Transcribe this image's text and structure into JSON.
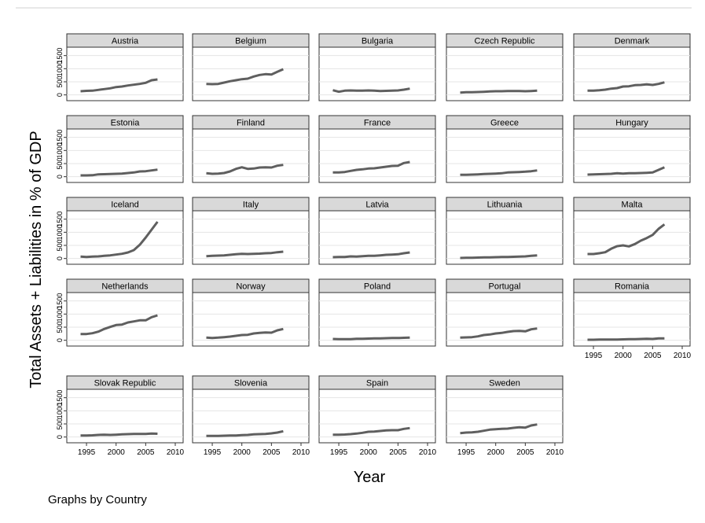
{
  "figure": {
    "ylabel": "Total Assets + Liabilities in % of GDP",
    "xlabel": "Year",
    "note": "Graphs by  Country"
  },
  "chart_data": {
    "type": "line",
    "layout": "small-multiples 5x5",
    "xlim": [
      1993,
      2010
    ],
    "ylim": [
      -100,
      1700
    ],
    "x_ticks": [
      1995,
      2000,
      2005,
      2010
    ],
    "y_ticks": [
      0,
      500,
      1000,
      1500
    ],
    "grid": true,
    "line_color": "#5f5f5f",
    "strip_color": "#d9d9d9",
    "panels": [
      {
        "name": "Austria",
        "x": [
          1994,
          1995,
          1996,
          1997,
          1998,
          1999,
          2000,
          2001,
          2002,
          2003,
          2004,
          2005,
          2006,
          2007
        ],
        "values": [
          140,
          155,
          160,
          190,
          220,
          250,
          300,
          320,
          360,
          390,
          420,
          460,
          560,
          590
        ]
      },
      {
        "name": "Belgium",
        "x": [
          1994,
          1995,
          1996,
          1997,
          1998,
          1999,
          2000,
          2001,
          2002,
          2003,
          2004,
          2005,
          2006,
          2007
        ],
        "values": [
          420,
          410,
          420,
          470,
          520,
          560,
          600,
          620,
          700,
          760,
          790,
          780,
          880,
          980
        ]
      },
      {
        "name": "Bulgaria",
        "x": [
          1994,
          1995,
          1996,
          1997,
          1998,
          1999,
          2000,
          2001,
          2002,
          2003,
          2004,
          2005,
          2006,
          2007
        ],
        "values": [
          180,
          120,
          160,
          170,
          160,
          165,
          170,
          160,
          150,
          155,
          165,
          170,
          200,
          240
        ]
      },
      {
        "name": "Czech Republic",
        "x": [
          1994,
          1995,
          1996,
          1997,
          1998,
          1999,
          2000,
          2001,
          2002,
          2003,
          2004,
          2005,
          2006,
          2007
        ],
        "values": [
          90,
          100,
          100,
          110,
          120,
          130,
          140,
          140,
          150,
          145,
          150,
          140,
          150,
          160
        ]
      },
      {
        "name": "Denmark",
        "x": [
          1994,
          1995,
          1996,
          1997,
          1998,
          1999,
          2000,
          2001,
          2002,
          2003,
          2004,
          2005,
          2006,
          2007
        ],
        "values": [
          160,
          165,
          180,
          200,
          240,
          260,
          320,
          330,
          370,
          380,
          400,
          380,
          420,
          480
        ]
      },
      {
        "name": "Estonia",
        "x": [
          1994,
          1995,
          1996,
          1997,
          1998,
          1999,
          2000,
          2001,
          2002,
          2003,
          2004,
          2005,
          2006,
          2007
        ],
        "values": [
          50,
          50,
          55,
          90,
          95,
          100,
          110,
          120,
          140,
          160,
          200,
          210,
          240,
          270
        ]
      },
      {
        "name": "Finland",
        "x": [
          1994,
          1995,
          1996,
          1997,
          1998,
          1999,
          2000,
          2001,
          2002,
          2003,
          2004,
          2005,
          2006,
          2007
        ],
        "values": [
          130,
          110,
          120,
          140,
          200,
          300,
          360,
          300,
          310,
          350,
          360,
          350,
          420,
          450
        ]
      },
      {
        "name": "France",
        "x": [
          1994,
          1995,
          1996,
          1997,
          1998,
          1999,
          2000,
          2001,
          2002,
          2003,
          2004,
          2005,
          2006,
          2007
        ],
        "values": [
          160,
          165,
          180,
          220,
          260,
          280,
          310,
          320,
          350,
          380,
          410,
          420,
          520,
          560
        ]
      },
      {
        "name": "Greece",
        "x": [
          1994,
          1995,
          1996,
          1997,
          1998,
          1999,
          2000,
          2001,
          2002,
          2003,
          2004,
          2005,
          2006,
          2007
        ],
        "values": [
          70,
          75,
          80,
          90,
          100,
          110,
          120,
          130,
          160,
          170,
          180,
          190,
          210,
          240
        ]
      },
      {
        "name": "Hungary",
        "x": [
          1994,
          1995,
          1996,
          1997,
          1998,
          1999,
          2000,
          2001,
          2002,
          2003,
          2004,
          2005,
          2006,
          2007
        ],
        "values": [
          80,
          90,
          95,
          100,
          110,
          130,
          120,
          130,
          130,
          140,
          150,
          160,
          260,
          360
        ]
      },
      {
        "name": "Iceland",
        "x": [
          1994,
          1995,
          1996,
          1997,
          1998,
          1999,
          2000,
          2001,
          2002,
          2003,
          2004,
          2005,
          2006,
          2007
        ],
        "values": [
          70,
          60,
          70,
          80,
          100,
          120,
          150,
          180,
          230,
          320,
          520,
          800,
          1100,
          1400
        ]
      },
      {
        "name": "Italy",
        "x": [
          1994,
          1995,
          1996,
          1997,
          1998,
          1999,
          2000,
          2001,
          2002,
          2003,
          2004,
          2005,
          2006,
          2007
        ],
        "values": [
          90,
          100,
          110,
          120,
          140,
          160,
          180,
          170,
          180,
          185,
          200,
          210,
          240,
          260
        ]
      },
      {
        "name": "Latvia",
        "x": [
          1994,
          1995,
          1996,
          1997,
          1998,
          1999,
          2000,
          2001,
          2002,
          2003,
          2004,
          2005,
          2006,
          2007
        ],
        "values": [
          50,
          55,
          60,
          80,
          70,
          90,
          100,
          100,
          120,
          140,
          150,
          160,
          200,
          230
        ]
      },
      {
        "name": "Lithuania",
        "x": [
          1994,
          1995,
          1996,
          1997,
          1998,
          1999,
          2000,
          2001,
          2002,
          2003,
          2004,
          2005,
          2006,
          2007
        ],
        "values": [
          20,
          25,
          30,
          35,
          40,
          45,
          50,
          55,
          60,
          65,
          70,
          80,
          100,
          120
        ]
      },
      {
        "name": "Malta",
        "x": [
          1994,
          1995,
          1996,
          1997,
          1998,
          1999,
          2000,
          2001,
          2002,
          2003,
          2004,
          2005,
          2006,
          2007
        ],
        "values": [
          170,
          170,
          200,
          240,
          370,
          470,
          500,
          460,
          550,
          680,
          780,
          900,
          1130,
          1300
        ]
      },
      {
        "name": "Netherlands",
        "x": [
          1994,
          1995,
          1996,
          1997,
          1998,
          1999,
          2000,
          2001,
          2002,
          2003,
          2004,
          2005,
          2006,
          2007
        ],
        "values": [
          240,
          240,
          270,
          330,
          430,
          510,
          580,
          600,
          680,
          720,
          760,
          760,
          880,
          950
        ]
      },
      {
        "name": "Norway",
        "x": [
          1994,
          1995,
          1996,
          1997,
          1998,
          1999,
          2000,
          2001,
          2002,
          2003,
          2004,
          2005,
          2006,
          2007
        ],
        "values": [
          100,
          90,
          100,
          120,
          140,
          170,
          200,
          210,
          260,
          280,
          300,
          290,
          380,
          430
        ]
      },
      {
        "name": "Poland",
        "x": [
          1994,
          1995,
          1996,
          1997,
          1998,
          1999,
          2000,
          2001,
          2002,
          2003,
          2004,
          2005,
          2006,
          2007
        ],
        "values": [
          50,
          40,
          40,
          45,
          55,
          60,
          65,
          70,
          75,
          80,
          90,
          85,
          95,
          100
        ]
      },
      {
        "name": "Portugal",
        "x": [
          1994,
          1995,
          1996,
          1997,
          1998,
          1999,
          2000,
          2001,
          2002,
          2003,
          2004,
          2005,
          2006,
          2007
        ],
        "values": [
          100,
          110,
          120,
          150,
          200,
          220,
          260,
          280,
          320,
          350,
          360,
          340,
          420,
          450
        ]
      },
      {
        "name": "Romania",
        "x": [
          1994,
          1995,
          1996,
          1997,
          1998,
          1999,
          2000,
          2001,
          2002,
          2003,
          2004,
          2005,
          2006,
          2007
        ],
        "values": [
          20,
          20,
          25,
          30,
          25,
          30,
          35,
          40,
          45,
          50,
          55,
          50,
          70,
          75
        ]
      },
      {
        "name": "Slovak Republic",
        "x": [
          1994,
          1995,
          1996,
          1997,
          1998,
          1999,
          2000,
          2001,
          2002,
          2003,
          2004,
          2005,
          2006,
          2007
        ],
        "values": [
          60,
          60,
          65,
          80,
          90,
          80,
          90,
          100,
          110,
          120,
          120,
          120,
          135,
          125
        ]
      },
      {
        "name": "Slovenia",
        "x": [
          1994,
          1995,
          1996,
          1997,
          1998,
          1999,
          2000,
          2001,
          2002,
          2003,
          2004,
          2005,
          2006,
          2007
        ],
        "values": [
          40,
          40,
          45,
          50,
          55,
          60,
          70,
          80,
          100,
          110,
          120,
          140,
          170,
          220
        ]
      },
      {
        "name": "Spain",
        "x": [
          1994,
          1995,
          1996,
          1997,
          1998,
          1999,
          2000,
          2001,
          2002,
          2003,
          2004,
          2005,
          2006,
          2007
        ],
        "values": [
          90,
          90,
          95,
          110,
          130,
          160,
          200,
          210,
          230,
          250,
          260,
          260,
          310,
          340
        ]
      },
      {
        "name": "Sweden",
        "x": [
          1994,
          1995,
          1996,
          1997,
          1998,
          1999,
          2000,
          2001,
          2002,
          2003,
          2004,
          2005,
          2006,
          2007
        ],
        "values": [
          150,
          170,
          180,
          200,
          240,
          280,
          300,
          310,
          320,
          350,
          370,
          360,
          440,
          480
        ]
      }
    ]
  }
}
